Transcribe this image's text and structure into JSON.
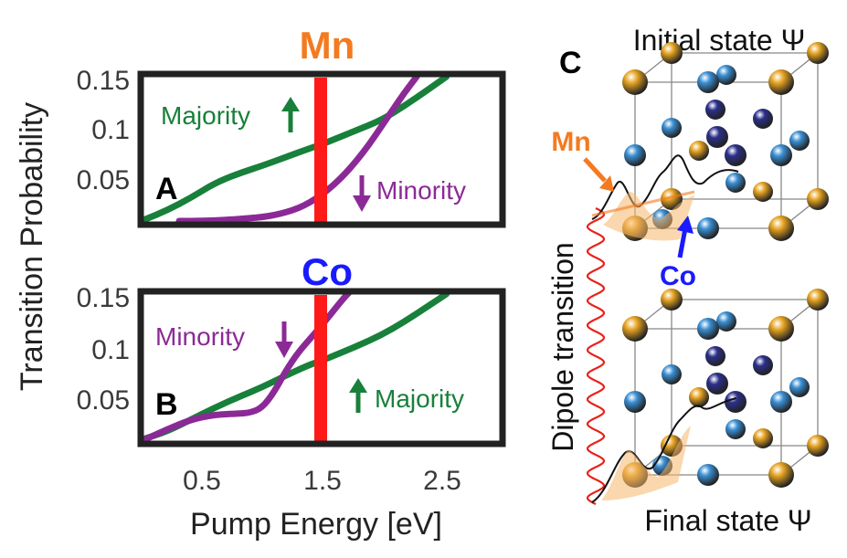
{
  "figure": {
    "ylabel": "Transition Probability",
    "xlabel": "Pump Energy [eV]",
    "panelC": {
      "letter": "C",
      "initial_label": "Initial state Ψ",
      "final_label": "Final state Ψ",
      "dipole_label": "Dipole transition",
      "mn_label": "Mn",
      "co_label": "Co"
    },
    "colors": {
      "majority": "#18803a",
      "minority": "#8b2a96",
      "pump_line": "#ff1a1a",
      "mn": "#f47a20",
      "co": "#1a1aff",
      "mn_atom": "#e5a321",
      "co_atom_light": "#3a8fd4",
      "co_atom_dark": "#2b2f8a"
    }
  },
  "chart_data": [
    {
      "type": "line",
      "panel": "A",
      "title": "Mn",
      "xlim": [
        0,
        3
      ],
      "ylim": [
        0,
        0.15
      ],
      "yticks": [
        "0.05",
        "0.1",
        "0.15"
      ],
      "xticks": [
        "0.5",
        "1.5",
        "2.5"
      ],
      "vline_x": 1.5,
      "series": [
        {
          "name": "Majority",
          "color": "#18803a",
          "x": [
            0.0,
            0.2,
            0.4,
            0.6,
            0.8,
            1.0,
            1.2,
            1.4,
            1.5,
            1.6,
            1.8,
            2.0,
            2.2,
            2.4,
            2.55
          ],
          "y": [
            0.002,
            0.012,
            0.025,
            0.04,
            0.05,
            0.058,
            0.067,
            0.076,
            0.08,
            0.085,
            0.095,
            0.105,
            0.12,
            0.137,
            0.15
          ]
        },
        {
          "name": "Minority",
          "color": "#8b2a96",
          "x": [
            0.3,
            0.5,
            0.7,
            0.9,
            1.0,
            1.1,
            1.2,
            1.3,
            1.4,
            1.5,
            1.6,
            1.7,
            1.8,
            1.9,
            2.0,
            2.1,
            2.2,
            2.3
          ],
          "y": [
            0.001,
            0.001,
            0.002,
            0.004,
            0.005,
            0.007,
            0.01,
            0.014,
            0.02,
            0.028,
            0.038,
            0.05,
            0.064,
            0.08,
            0.098,
            0.116,
            0.134,
            0.15
          ]
        }
      ],
      "annotations": [
        {
          "text": "Majority",
          "arrow": "up",
          "color": "#18803a"
        },
        {
          "text": "Minority",
          "arrow": "down",
          "color": "#8b2a96"
        }
      ]
    },
    {
      "type": "line",
      "panel": "B",
      "title": "Co",
      "xlim": [
        0,
        3
      ],
      "ylim": [
        0,
        0.15
      ],
      "yticks": [
        "0.05",
        "0.1",
        "0.15"
      ],
      "xticks": [
        "0.5",
        "1.5",
        "2.5"
      ],
      "vline_x": 1.5,
      "series": [
        {
          "name": "Majority",
          "color": "#18803a",
          "x": [
            0.0,
            0.2,
            0.4,
            0.6,
            0.8,
            1.0,
            1.2,
            1.4,
            1.5,
            1.6,
            1.8,
            2.0,
            2.2,
            2.4,
            2.55
          ],
          "y": [
            0.002,
            0.01,
            0.022,
            0.034,
            0.045,
            0.055,
            0.067,
            0.078,
            0.082,
            0.087,
            0.097,
            0.108,
            0.122,
            0.138,
            0.15
          ]
        },
        {
          "name": "Minority",
          "color": "#8b2a96",
          "x": [
            0.0,
            0.2,
            0.4,
            0.6,
            0.8,
            0.9,
            1.0,
            1.1,
            1.2,
            1.3,
            1.4,
            1.5,
            1.6,
            1.7,
            1.8
          ],
          "y": [
            0.001,
            0.012,
            0.022,
            0.027,
            0.028,
            0.029,
            0.034,
            0.05,
            0.072,
            0.09,
            0.104,
            0.118,
            0.133,
            0.148,
            0.16
          ]
        }
      ],
      "annotations": [
        {
          "text": "Minority",
          "arrow": "down",
          "color": "#8b2a96"
        },
        {
          "text": "Majority",
          "arrow": "up",
          "color": "#18803a"
        }
      ]
    }
  ]
}
